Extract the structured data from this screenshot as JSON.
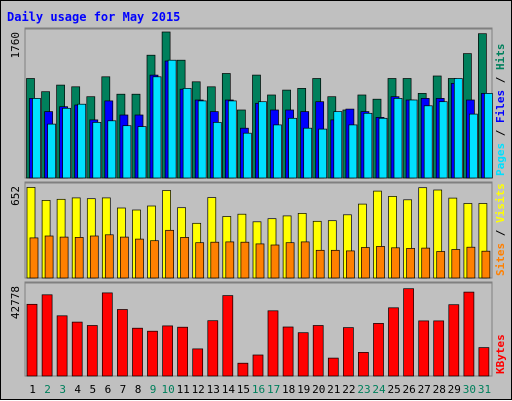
{
  "chart_data": {
    "type": "bar",
    "title": "Daily usage for May 2015",
    "categories": [
      "1",
      "2",
      "3",
      "4",
      "5",
      "6",
      "7",
      "8",
      "9",
      "10",
      "11",
      "12",
      "13",
      "14",
      "15",
      "16",
      "17",
      "18",
      "19",
      "20",
      "21",
      "22",
      "23",
      "24",
      "25",
      "26",
      "27",
      "28",
      "29",
      "30",
      "31"
    ],
    "weekend_days": [
      "2",
      "3",
      "9",
      "10",
      "16",
      "17",
      "23",
      "24",
      "30",
      "31"
    ],
    "panels": [
      {
        "id": "hits-files-pages",
        "ymax_label": "1760",
        "ymax": 1760,
        "side_labels": [
          "Pages",
          "Files",
          "Hits"
        ],
        "series": [
          {
            "name": "Hits",
            "color": "#00805c",
            "values": [
              1200,
              1040,
              1120,
              1100,
              980,
              1220,
              1010,
              1010,
              1480,
              1760,
              1420,
              1160,
              1100,
              1260,
              820,
              1240,
              1000,
              1060,
              1080,
              1200,
              980,
              820,
              1000,
              950,
              1200,
              1200,
              1020,
              1230,
              1200,
              1500,
              1740
            ]
          },
          {
            "name": "Files",
            "color": "#0000ff",
            "values": [
              960,
              800,
              860,
              880,
              700,
              930,
              760,
              760,
              1240,
              1410,
              1070,
              940,
              800,
              940,
              600,
              900,
              820,
              820,
              800,
              920,
              700,
              830,
              800,
              730,
              980,
              940,
              960,
              960,
              1140,
              940,
              1020
            ]
          },
          {
            "name": "Pages",
            "color": "#00e0ff",
            "values": [
              960,
              650,
              840,
              890,
              670,
              690,
              630,
              620,
              1220,
              1420,
              1080,
              930,
              670,
              930,
              540,
              920,
              640,
              720,
              600,
              590,
              800,
              640,
              780,
              720,
              960,
              940,
              870,
              920,
              1200,
              770,
              1020
            ]
          }
        ]
      },
      {
        "id": "visits-sites",
        "ymax_label": "652",
        "ymax": 652,
        "side_labels": [
          "Sites",
          "Visits"
        ],
        "series": [
          {
            "name": "Visits",
            "color": "#ffff00",
            "values": [
              642,
              550,
              558,
              568,
              562,
              568,
              496,
              482,
              510,
              620,
              498,
              388,
              570,
              436,
              452,
              398,
              420,
              440,
              458,
              402,
              406,
              448,
              524,
              616,
              578,
              554,
              640,
              624,
              566,
              528,
              528
            ]
          },
          {
            "name": "Sites",
            "color": "#ff8000",
            "values": [
              284,
              298,
              290,
              288,
              298,
              306,
              290,
              276,
              264,
              338,
              288,
              250,
              254,
              256,
              254,
              242,
              234,
              250,
              256,
              196,
              196,
              192,
              216,
              224,
              214,
              210,
              212,
              188,
              202,
              218,
              190
            ]
          }
        ]
      },
      {
        "id": "kbytes",
        "ymax_label": "42778",
        "ymax": 42778,
        "side_labels": [
          "KBytes"
        ],
        "series": [
          {
            "name": "KBytes",
            "color": "#ff0000",
            "values": [
              34100,
              38600,
              28600,
              25600,
              24000,
              39500,
              31600,
              22700,
              21300,
              23800,
              23200,
              12900,
              26300,
              38200,
              6100,
              10000,
              31000,
              23300,
              20600,
              24000,
              8500,
              23000,
              11200,
              25000,
              32400,
              41500,
              26200,
              26200,
              33900,
              39900,
              13500
            ]
          }
        ]
      }
    ],
    "colors": {
      "background": "#c0c0c0",
      "title": "#0000ff",
      "weekday_label": "#000000",
      "weekend_label": "#00805c",
      "bar_outline": "#000000"
    }
  }
}
